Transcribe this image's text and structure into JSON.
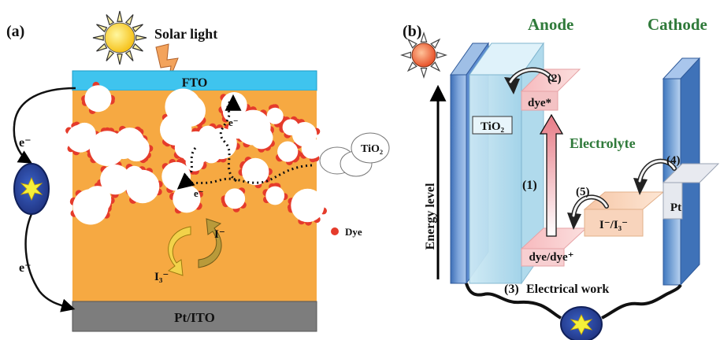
{
  "colors": {
    "fto": "#3fc4ee",
    "electrolyte": "#f6a942",
    "pt_ito": "#7d7d7d",
    "dye": "#e53b2b",
    "tio2_particle": "#ffffff",
    "label_green": "#2f7a3a",
    "electrode_blue": "#4d86c8"
  },
  "icons": [
    "sun-icon",
    "lightning-icon",
    "load-icon",
    "redox-cycle-arrows-icon"
  ],
  "panel_a": {
    "label": "(a)",
    "solar_light": "Solar light",
    "fto": "FTO",
    "pt_ito": "Pt/ITO",
    "electron_top": "e⁻",
    "electron_bottom": "e⁻",
    "electron_path_1": "e⁻",
    "electron_path_2": "e⁻",
    "iodide": "I⁻",
    "triiodide": "I₃⁻",
    "tio2_legend": "TiO₂",
    "dye_legend": "Dye"
  },
  "panel_b": {
    "label": "(b)",
    "anode": "Anode",
    "cathode": "Cathode",
    "tio2": "TiO₂",
    "energy_level": "Energy level",
    "electrolyte": "Electrolyte",
    "dye_excited": "dye*",
    "dye_ground": "dye/dye⁺",
    "redox": "I⁻/I₃⁻",
    "pt": "Pt",
    "step1": "(1)",
    "step2": "(2)",
    "step3": "(3)",
    "step4": "(4)",
    "step5": "(5)",
    "electrical_work": "Electrical work"
  }
}
